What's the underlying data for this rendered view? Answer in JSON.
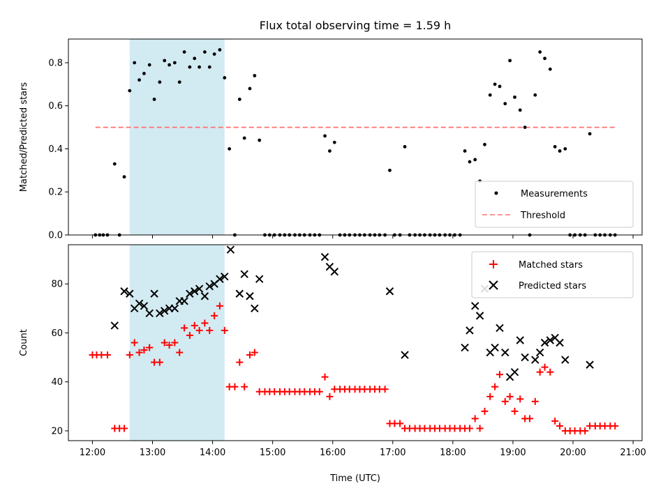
{
  "chart_data": [
    {
      "type": "scatter",
      "title": "Flux total observing time = 1.59 h",
      "xlabel": "",
      "ylabel": "Matched/Predicted stars",
      "xlim": [
        11.6,
        21.15
      ],
      "ylim": [
        0.0,
        0.91
      ],
      "yticks": [
        0.0,
        0.2,
        0.4,
        0.6,
        0.8
      ],
      "ytick_labels": [
        "0.0",
        "0.2",
        "0.4",
        "0.6",
        "0.8"
      ],
      "xticks": [
        12,
        13,
        14,
        15,
        16,
        17,
        18,
        19,
        20,
        21
      ],
      "shaded_span": [
        12.62,
        14.2
      ],
      "shade_color": "#add8e6",
      "legend_position": "lower-right",
      "threshold": {
        "name": "Threshold",
        "value": 0.5,
        "x_range": [
          12.05,
          20.7
        ],
        "color": "#ff7070",
        "style": "dashed"
      },
      "series": [
        {
          "name": "Measurements",
          "marker": "dot",
          "color": "#000000",
          "points": [
            [
              12.05,
              0
            ],
            [
              12.12,
              0
            ],
            [
              12.18,
              0
            ],
            [
              12.25,
              0
            ],
            [
              12.37,
              0.33
            ],
            [
              12.45,
              0
            ],
            [
              12.53,
              0.27
            ],
            [
              12.62,
              0.67
            ],
            [
              12.7,
              0.8
            ],
            [
              12.78,
              0.72
            ],
            [
              12.86,
              0.75
            ],
            [
              12.95,
              0.79
            ],
            [
              13.03,
              0.63
            ],
            [
              13.12,
              0.71
            ],
            [
              13.2,
              0.81
            ],
            [
              13.28,
              0.79
            ],
            [
              13.37,
              0.8
            ],
            [
              13.45,
              0.71
            ],
            [
              13.53,
              0.85
            ],
            [
              13.62,
              0.78
            ],
            [
              13.7,
              0.82
            ],
            [
              13.78,
              0.78
            ],
            [
              13.87,
              0.85
            ],
            [
              13.95,
              0.78
            ],
            [
              14.03,
              0.84
            ],
            [
              14.12,
              0.86
            ],
            [
              14.2,
              0.73
            ],
            [
              14.28,
              0.4
            ],
            [
              14.37,
              0
            ],
            [
              14.45,
              0.63
            ],
            [
              14.53,
              0.45
            ],
            [
              14.62,
              0.68
            ],
            [
              14.7,
              0.74
            ],
            [
              14.78,
              0.44
            ],
            [
              14.87,
              0
            ],
            [
              14.95,
              0
            ],
            [
              15.03,
              0
            ],
            [
              15.12,
              0
            ],
            [
              15.2,
              0
            ],
            [
              15.28,
              0
            ],
            [
              15.37,
              0
            ],
            [
              15.45,
              0
            ],
            [
              15.53,
              0
            ],
            [
              15.62,
              0
            ],
            [
              15.7,
              0
            ],
            [
              15.78,
              0
            ],
            [
              15.87,
              0.46
            ],
            [
              15.95,
              0.39
            ],
            [
              16.03,
              0.43
            ],
            [
              16.12,
              0
            ],
            [
              16.2,
              0
            ],
            [
              16.28,
              0
            ],
            [
              16.37,
              0
            ],
            [
              16.45,
              0
            ],
            [
              16.53,
              0
            ],
            [
              16.62,
              0
            ],
            [
              16.7,
              0
            ],
            [
              16.78,
              0
            ],
            [
              16.87,
              0
            ],
            [
              16.95,
              0.3
            ],
            [
              17.03,
              0
            ],
            [
              17.12,
              0
            ],
            [
              17.2,
              0.41
            ],
            [
              17.28,
              0
            ],
            [
              17.37,
              0
            ],
            [
              17.45,
              0
            ],
            [
              17.53,
              0
            ],
            [
              17.62,
              0
            ],
            [
              17.7,
              0
            ],
            [
              17.78,
              0
            ],
            [
              17.87,
              0
            ],
            [
              17.95,
              0
            ],
            [
              18.03,
              0
            ],
            [
              18.12,
              0
            ],
            [
              18.2,
              0.39
            ],
            [
              18.28,
              0.34
            ],
            [
              18.37,
              0.35
            ],
            [
              18.45,
              0.25
            ],
            [
              18.53,
              0.42
            ],
            [
              18.62,
              0.65
            ],
            [
              18.7,
              0.7
            ],
            [
              18.78,
              0.69
            ],
            [
              18.87,
              0.61
            ],
            [
              18.95,
              0.81
            ],
            [
              19.03,
              0.64
            ],
            [
              19.12,
              0.58
            ],
            [
              19.2,
              0.5
            ],
            [
              19.28,
              0
            ],
            [
              19.37,
              0.65
            ],
            [
              19.45,
              0.85
            ],
            [
              19.53,
              0.82
            ],
            [
              19.62,
              0.77
            ],
            [
              19.7,
              0.41
            ],
            [
              19.78,
              0.39
            ],
            [
              19.87,
              0.4
            ],
            [
              19.95,
              0
            ],
            [
              20.03,
              0
            ],
            [
              20.12,
              0
            ],
            [
              20.2,
              0
            ],
            [
              20.28,
              0.47
            ],
            [
              20.37,
              0
            ],
            [
              20.45,
              0
            ],
            [
              20.53,
              0
            ],
            [
              20.62,
              0
            ],
            [
              20.7,
              0
            ]
          ]
        }
      ]
    },
    {
      "type": "scatter",
      "title": "",
      "xlabel": "Time (UTC)",
      "ylabel": "Count",
      "xlim": [
        11.6,
        21.15
      ],
      "ylim": [
        16,
        96
      ],
      "yticks": [
        20,
        40,
        60,
        80
      ],
      "ytick_labels": [
        "20",
        "40",
        "60",
        "80"
      ],
      "xticks": [
        12,
        13,
        14,
        15,
        16,
        17,
        18,
        19,
        20,
        21
      ],
      "xtick_labels": [
        "12:00",
        "13:00",
        "14:00",
        "15:00",
        "16:00",
        "17:00",
        "18:00",
        "19:00",
        "20:00",
        "21:00"
      ],
      "shaded_span": [
        12.62,
        14.2
      ],
      "shade_color": "#add8e6",
      "legend_position": "upper-right",
      "series": [
        {
          "name": "Matched stars",
          "marker": "plus",
          "color": "#ff0000",
          "points": [
            [
              12.0,
              51
            ],
            [
              12.07,
              51
            ],
            [
              12.15,
              51
            ],
            [
              12.25,
              51
            ],
            [
              12.37,
              21
            ],
            [
              12.45,
              21
            ],
            [
              12.53,
              21
            ],
            [
              12.62,
              51
            ],
            [
              12.7,
              56
            ],
            [
              12.78,
              52
            ],
            [
              12.86,
              53
            ],
            [
              12.95,
              54
            ],
            [
              13.03,
              48
            ],
            [
              13.12,
              48
            ],
            [
              13.2,
              56
            ],
            [
              13.28,
              55
            ],
            [
              13.37,
              56
            ],
            [
              13.45,
              52
            ],
            [
              13.53,
              62
            ],
            [
              13.62,
              59
            ],
            [
              13.7,
              63
            ],
            [
              13.78,
              61
            ],
            [
              13.87,
              64
            ],
            [
              13.95,
              61
            ],
            [
              14.03,
              67
            ],
            [
              14.12,
              71
            ],
            [
              14.2,
              61
            ],
            [
              14.28,
              38
            ],
            [
              14.37,
              38
            ],
            [
              14.45,
              48
            ],
            [
              14.53,
              38
            ],
            [
              14.62,
              51
            ],
            [
              14.7,
              52
            ],
            [
              14.78,
              36
            ],
            [
              14.87,
              36
            ],
            [
              14.95,
              36
            ],
            [
              15.03,
              36
            ],
            [
              15.12,
              36
            ],
            [
              15.2,
              36
            ],
            [
              15.28,
              36
            ],
            [
              15.37,
              36
            ],
            [
              15.45,
              36
            ],
            [
              15.53,
              36
            ],
            [
              15.62,
              36
            ],
            [
              15.7,
              36
            ],
            [
              15.78,
              36
            ],
            [
              15.87,
              42
            ],
            [
              15.95,
              34
            ],
            [
              16.03,
              37
            ],
            [
              16.12,
              37
            ],
            [
              16.2,
              37
            ],
            [
              16.28,
              37
            ],
            [
              16.37,
              37
            ],
            [
              16.45,
              37
            ],
            [
              16.53,
              37
            ],
            [
              16.62,
              37
            ],
            [
              16.7,
              37
            ],
            [
              16.78,
              37
            ],
            [
              16.87,
              37
            ],
            [
              16.95,
              23
            ],
            [
              17.03,
              23
            ],
            [
              17.12,
              23
            ],
            [
              17.2,
              21
            ],
            [
              17.28,
              21
            ],
            [
              17.37,
              21
            ],
            [
              17.45,
              21
            ],
            [
              17.53,
              21
            ],
            [
              17.62,
              21
            ],
            [
              17.7,
              21
            ],
            [
              17.78,
              21
            ],
            [
              17.87,
              21
            ],
            [
              17.95,
              21
            ],
            [
              18.03,
              21
            ],
            [
              18.12,
              21
            ],
            [
              18.2,
              21
            ],
            [
              18.28,
              21
            ],
            [
              18.37,
              25
            ],
            [
              18.45,
              21
            ],
            [
              18.53,
              28
            ],
            [
              18.62,
              34
            ],
            [
              18.7,
              38
            ],
            [
              18.78,
              43
            ],
            [
              18.87,
              32
            ],
            [
              18.95,
              34
            ],
            [
              19.03,
              28
            ],
            [
              19.12,
              33
            ],
            [
              19.2,
              25
            ],
            [
              19.28,
              25
            ],
            [
              19.37,
              32
            ],
            [
              19.45,
              44
            ],
            [
              19.53,
              46
            ],
            [
              19.62,
              44
            ],
            [
              19.7,
              24
            ],
            [
              19.78,
              22
            ],
            [
              19.87,
              20
            ],
            [
              19.95,
              20
            ],
            [
              20.03,
              20
            ],
            [
              20.12,
              20
            ],
            [
              20.2,
              20
            ],
            [
              20.28,
              22
            ],
            [
              20.37,
              22
            ],
            [
              20.45,
              22
            ],
            [
              20.53,
              22
            ],
            [
              20.62,
              22
            ],
            [
              20.7,
              22
            ]
          ]
        },
        {
          "name": "Predicted stars",
          "marker": "x",
          "color": "#000000",
          "points": [
            [
              12.37,
              63
            ],
            [
              12.53,
              77
            ],
            [
              12.62,
              76
            ],
            [
              12.7,
              70
            ],
            [
              12.78,
              72
            ],
            [
              12.86,
              71
            ],
            [
              12.95,
              68
            ],
            [
              13.03,
              76
            ],
            [
              13.12,
              68
            ],
            [
              13.2,
              69
            ],
            [
              13.28,
              70
            ],
            [
              13.37,
              70
            ],
            [
              13.45,
              73
            ],
            [
              13.53,
              73
            ],
            [
              13.62,
              76
            ],
            [
              13.7,
              77
            ],
            [
              13.78,
              78
            ],
            [
              13.87,
              75
            ],
            [
              13.95,
              79
            ],
            [
              14.03,
              80
            ],
            [
              14.12,
              82
            ],
            [
              14.2,
              83
            ],
            [
              14.3,
              94
            ],
            [
              14.45,
              76
            ],
            [
              14.53,
              84
            ],
            [
              14.62,
              75
            ],
            [
              14.7,
              70
            ],
            [
              14.78,
              82
            ],
            [
              15.87,
              91
            ],
            [
              15.95,
              87
            ],
            [
              16.03,
              85
            ],
            [
              16.95,
              77
            ],
            [
              17.2,
              51
            ],
            [
              18.2,
              54
            ],
            [
              18.28,
              61
            ],
            [
              18.37,
              71
            ],
            [
              18.45,
              67
            ],
            [
              18.53,
              78
            ],
            [
              18.62,
              52
            ],
            [
              18.7,
              54
            ],
            [
              18.78,
              62
            ],
            [
              18.87,
              52
            ],
            [
              18.95,
              42
            ],
            [
              19.03,
              44
            ],
            [
              19.12,
              57
            ],
            [
              19.2,
              50
            ],
            [
              19.37,
              49
            ],
            [
              19.45,
              52
            ],
            [
              19.53,
              56
            ],
            [
              19.62,
              57
            ],
            [
              19.7,
              58
            ],
            [
              19.78,
              56
            ],
            [
              19.87,
              49
            ],
            [
              20.28,
              47
            ]
          ]
        }
      ]
    }
  ]
}
